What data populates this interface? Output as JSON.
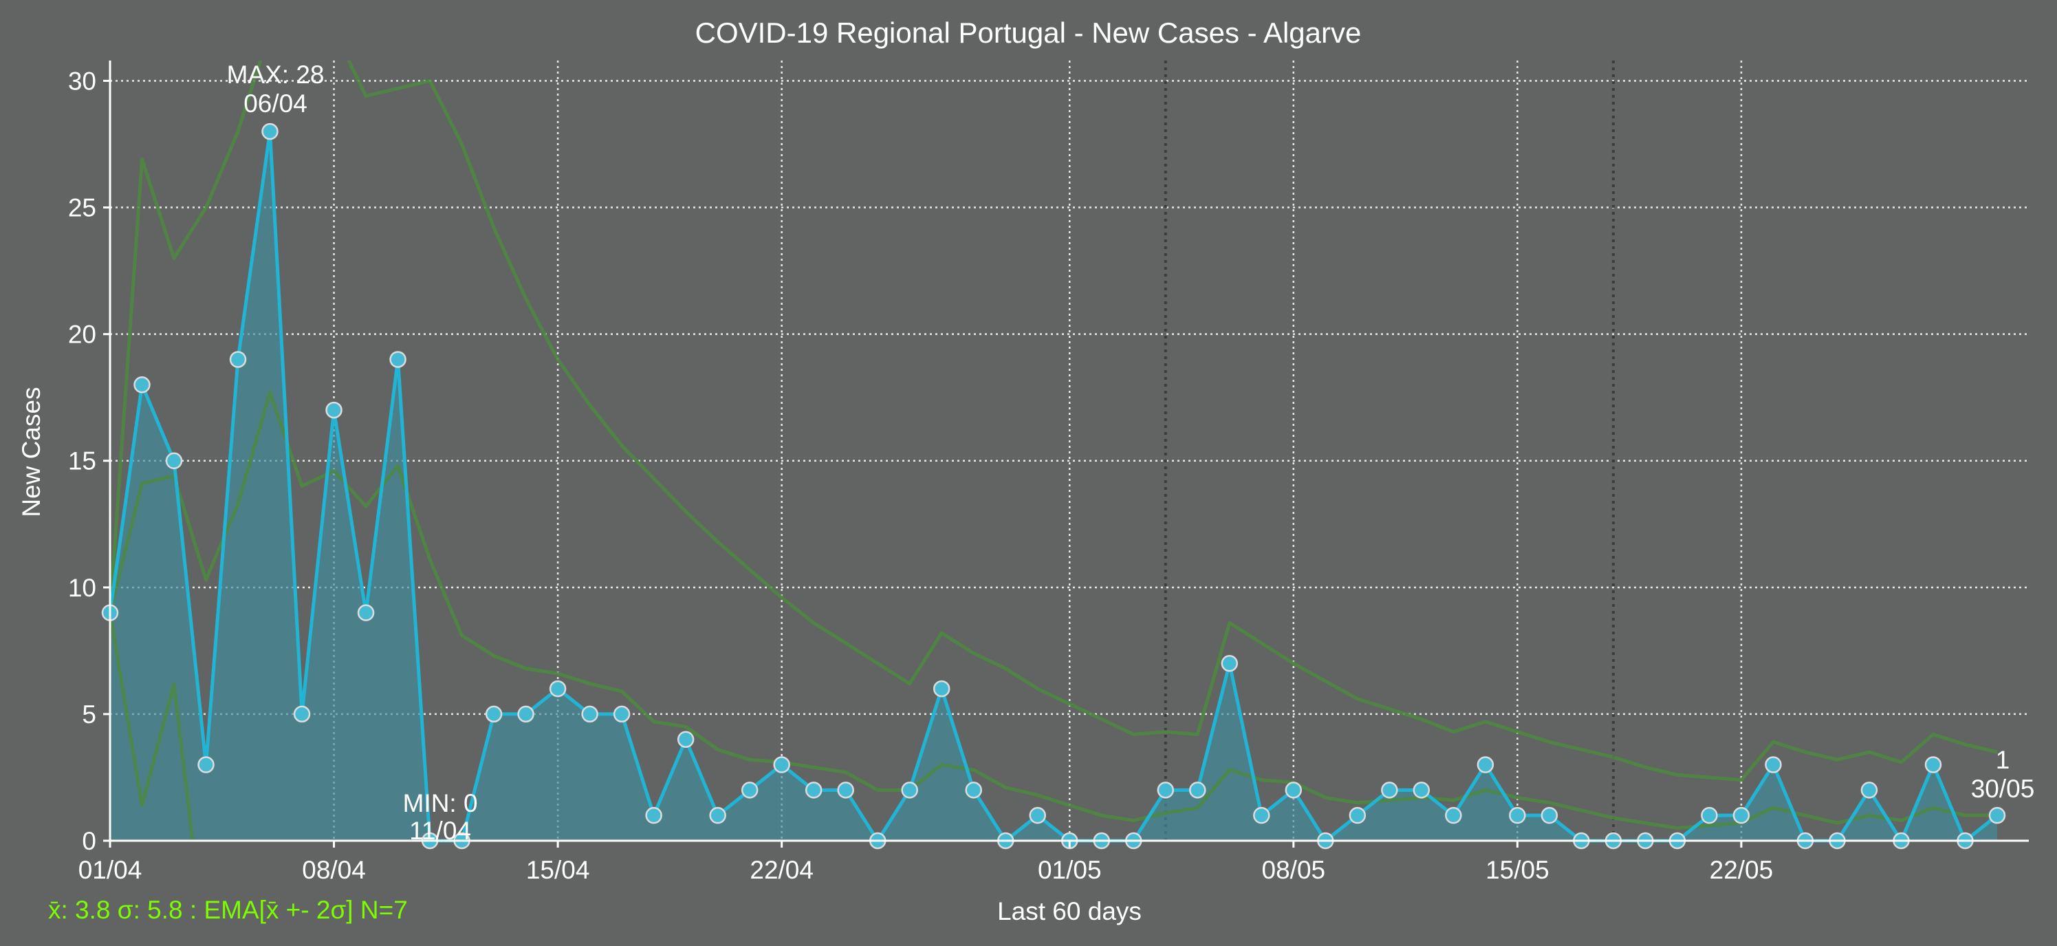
{
  "chart_data": {
    "type": "line",
    "title": "COVID-19 Regional Portugal - New Cases - Algarve",
    "xlabel": "Last 60 days",
    "ylabel": "New Cases",
    "ylim": [
      0,
      30.8
    ],
    "yticks": [
      0,
      5,
      10,
      15,
      20,
      25,
      30
    ],
    "xticks": [
      {
        "label": "01/04",
        "index": 0
      },
      {
        "label": "08/04",
        "index": 7
      },
      {
        "label": "15/04",
        "index": 14
      },
      {
        "label": "22/04",
        "index": 21
      },
      {
        "label": "01/05",
        "index": 30
      },
      {
        "label": "08/05",
        "index": 37
      },
      {
        "label": "15/05",
        "index": 44
      },
      {
        "label": "22/05",
        "index": 51
      }
    ],
    "weekend_lines": [
      33,
      47
    ],
    "grid": true,
    "series": [
      {
        "values": [
          9,
          18,
          15,
          3,
          19,
          28,
          5,
          17,
          9,
          19,
          0,
          0,
          5,
          5,
          6,
          5,
          5,
          1,
          4,
          1,
          2,
          3,
          2,
          2,
          0,
          2,
          6,
          2,
          0,
          1,
          0,
          0,
          0,
          2,
          2,
          7,
          1,
          2,
          0,
          1,
          2,
          2,
          1,
          3,
          1,
          1,
          0,
          0,
          0,
          0,
          1,
          1,
          3,
          0,
          0,
          2,
          0,
          3,
          0,
          1
        ],
        "color": "#22b4d4"
      },
      {
        "values": [
          9.0,
          14.1,
          14.4,
          10.3,
          13.3,
          17.7,
          14.0,
          14.6,
          13.2,
          14.8,
          11.1,
          8.1,
          7.3,
          6.8,
          6.6,
          6.2,
          5.9,
          4.7,
          4.5,
          3.6,
          3.2,
          3.1,
          2.9,
          2.7,
          2.0,
          2.0,
          3.0,
          2.8,
          2.1,
          1.8,
          1.4,
          1.0,
          0.8,
          1.1,
          1.3,
          2.8,
          2.4,
          2.3,
          1.7,
          1.5,
          1.6,
          1.7,
          1.6,
          2.0,
          1.7,
          1.5,
          1.2,
          0.9,
          0.7,
          0.5,
          0.6,
          0.7,
          1.3,
          1.0,
          0.7,
          1.0,
          0.8,
          1.3,
          1.0,
          1.0
        ],
        "color": "#4c8a40"
      },
      {
        "values": [
          9.0,
          26.9,
          23.0,
          25.0,
          28.0,
          32.0,
          34.0,
          32.0,
          29.4,
          29.7,
          30.0,
          27.5,
          24.2,
          21.4,
          19.0,
          17.2,
          15.6,
          14.3,
          13.0,
          11.8,
          10.7,
          9.6,
          8.6,
          7.8,
          7.0,
          6.2,
          8.2,
          7.4,
          6.8,
          6.0,
          5.4,
          4.8,
          4.2,
          4.3,
          4.2,
          8.6,
          7.8,
          7.0,
          6.3,
          5.6,
          5.2,
          4.8,
          4.3,
          4.7,
          4.3,
          3.9,
          3.6,
          3.3,
          2.9,
          2.6,
          2.5,
          2.4,
          3.9,
          3.5,
          3.2,
          3.5,
          3.1,
          4.2,
          3.8,
          3.5
        ],
        "color": "#4c8a40"
      },
      {
        "values": [
          9.0,
          1.4,
          6.2,
          -4.5,
          null,
          null,
          null,
          null,
          null,
          null,
          null,
          null,
          null,
          null,
          null,
          null,
          null,
          null,
          null,
          null,
          null,
          null,
          null,
          null,
          null,
          null,
          null,
          null,
          null,
          null,
          null,
          null,
          null,
          null,
          null,
          null,
          null,
          null,
          null,
          null,
          null,
          null,
          null,
          null,
          null,
          null,
          null,
          null,
          null,
          null,
          null,
          null,
          null,
          null,
          null,
          null,
          null,
          null,
          null,
          null
        ],
        "color": "#4c8a40"
      }
    ],
    "annotations": {
      "max": {
        "line1": "MAX: 28",
        "line2": "06/04",
        "index": 5,
        "value": 28
      },
      "min": {
        "line1": "MIN: 0",
        "line2": "11/04",
        "index": 10,
        "value": 0
      },
      "last": {
        "line1": "1",
        "line2": "30/05",
        "index": 59,
        "value": 1
      }
    },
    "footer": "x̄: 3.8 σ: 5.8 : EMA[x̄ +- 2σ] N=7",
    "footer_color": "#7cfc00",
    "background": "#626463"
  }
}
